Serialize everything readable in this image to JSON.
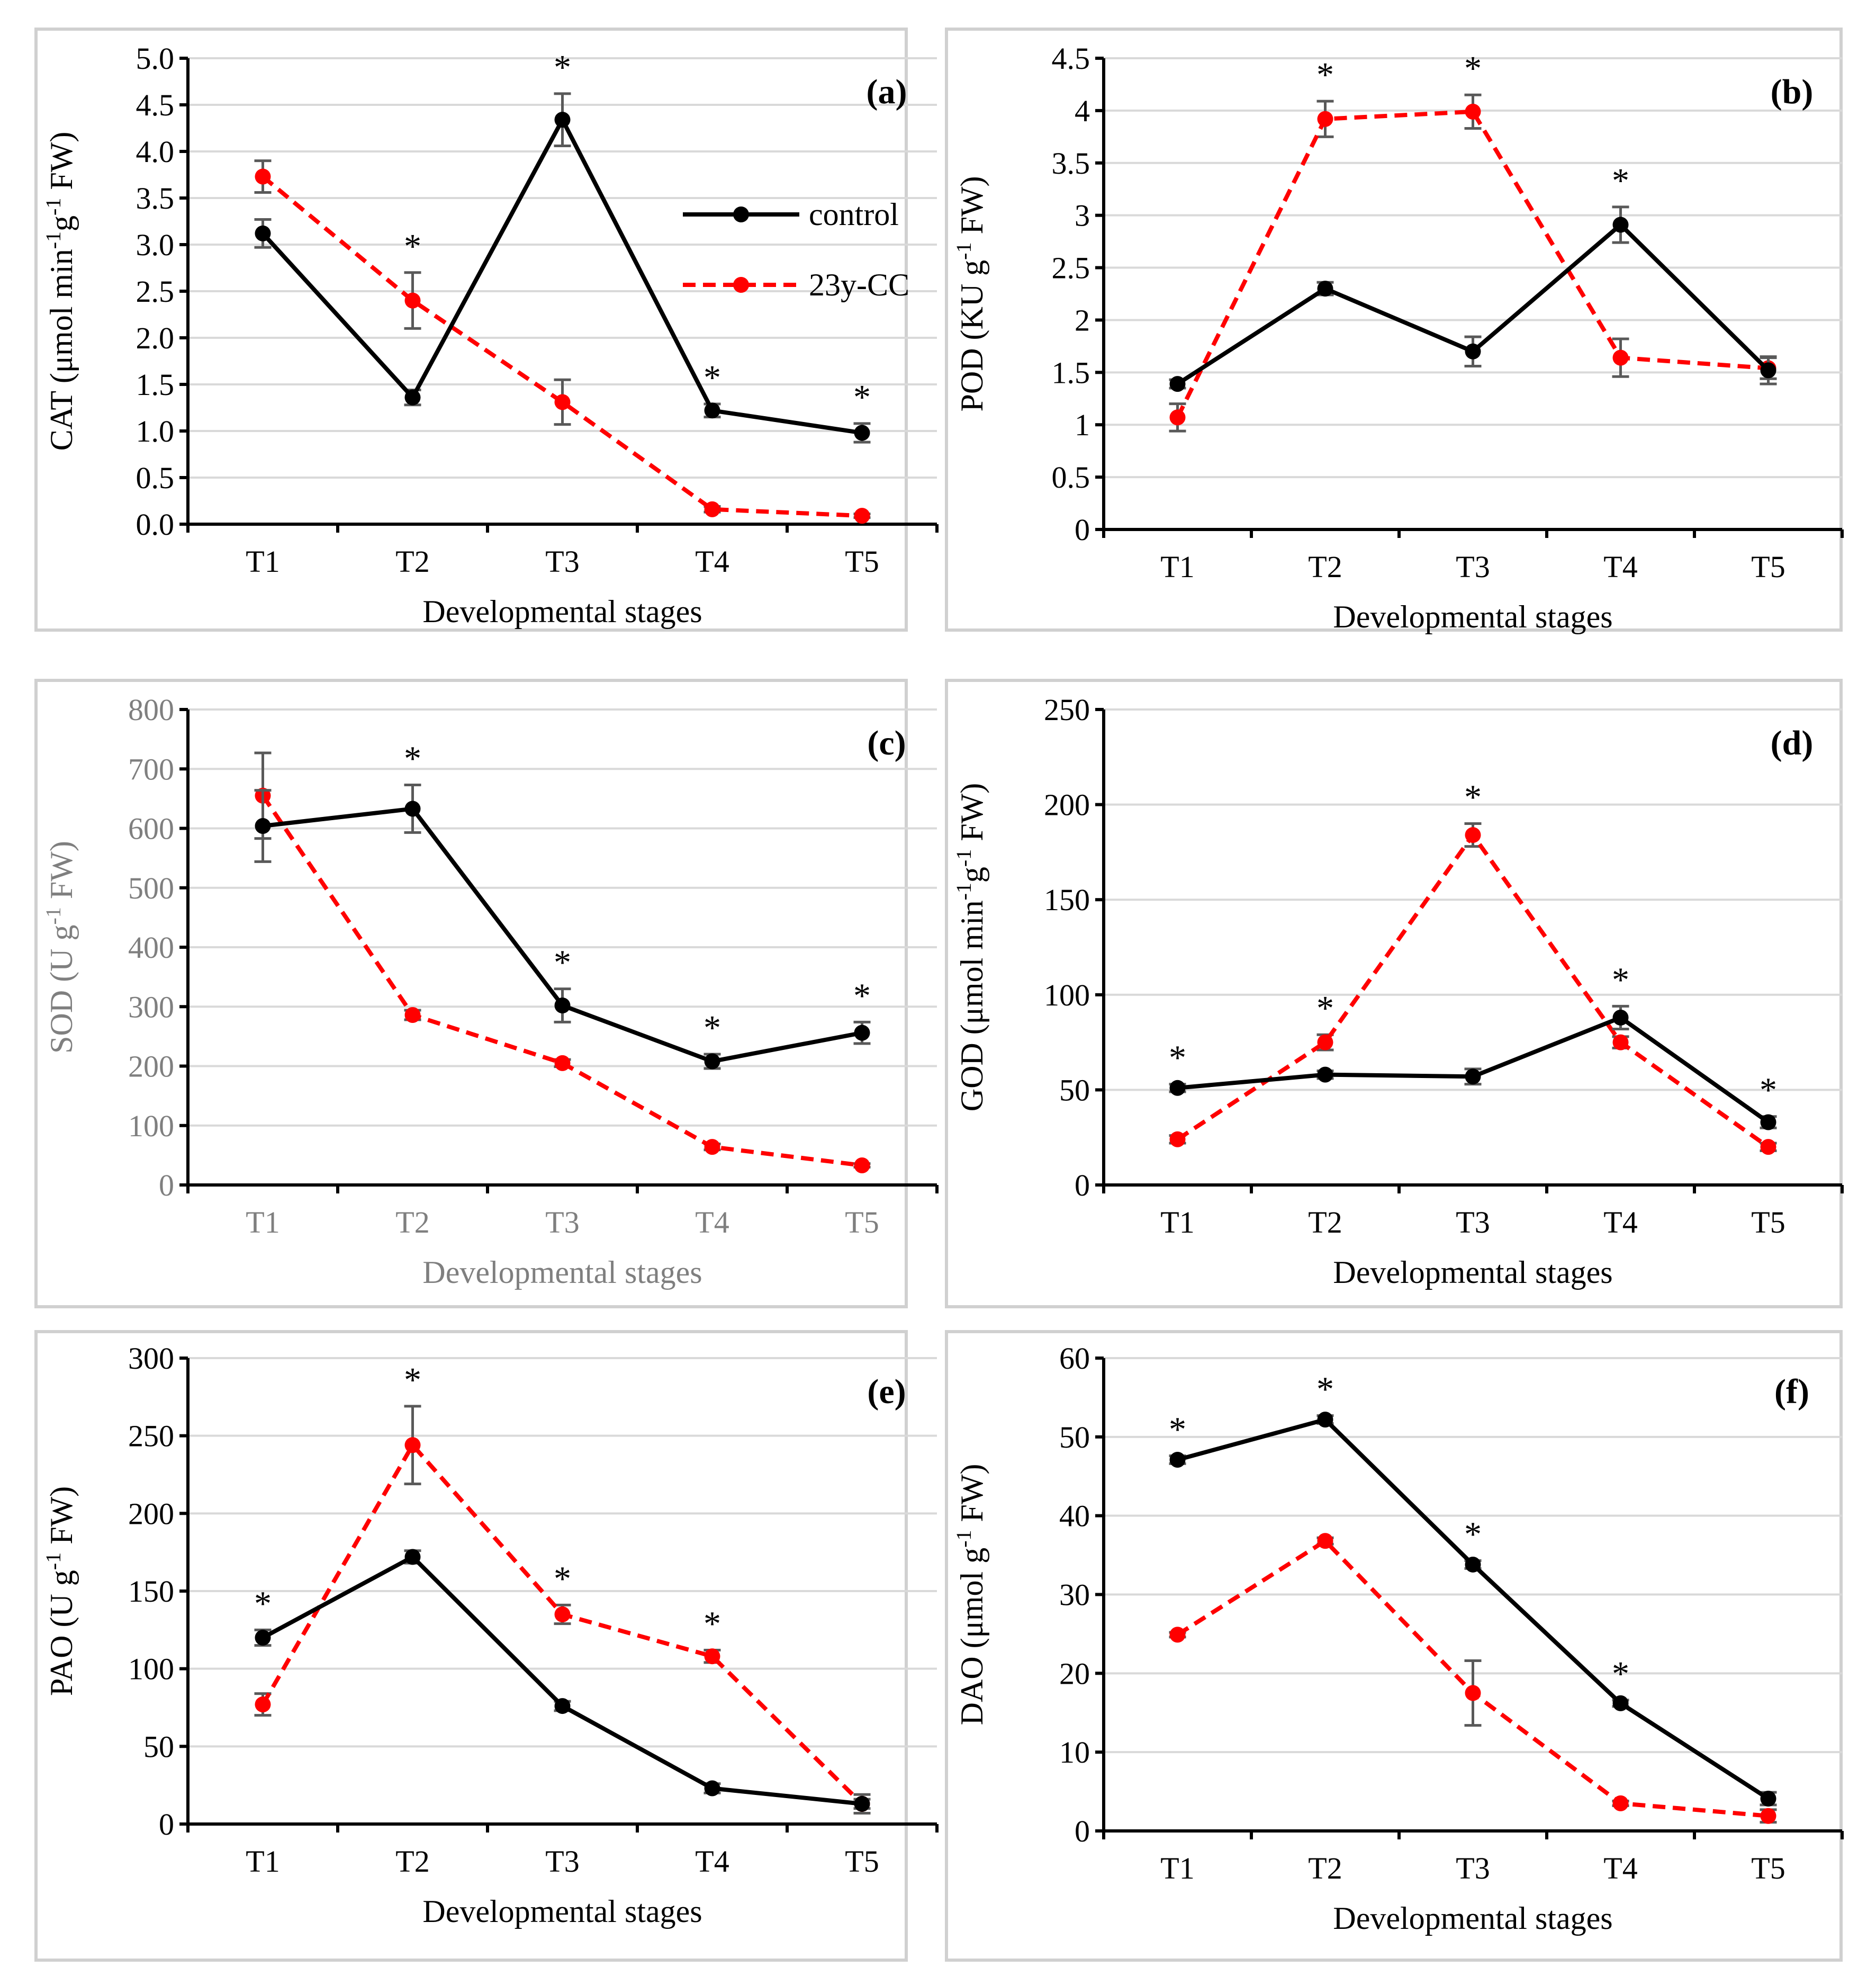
{
  "colors": {
    "control": "#000000",
    "treatment": "#ff0000",
    "errorbar": "#595959"
  },
  "legend": {
    "control_label": "control",
    "treatment_label": "23y-CC"
  },
  "chart_data": [
    {
      "id": "a",
      "type": "line",
      "panel_label": "(a)",
      "ylabel": "CAT (μmol min-1 g-1 FW)",
      "ylabel_parts": [
        {
          "t": "CAT (μmol min"
        },
        {
          "t": "-1",
          "sup": true
        },
        {
          "t": "g"
        },
        {
          "t": "-1",
          "sup": true
        },
        {
          "t": " FW)"
        }
      ],
      "xlabel": "Developmental stages",
      "categories": [
        "T1",
        "T2",
        "T3",
        "T4",
        "T5"
      ],
      "ylim": [
        0,
        5
      ],
      "ytick_step": 0.5,
      "ytick_decimals": 1,
      "series": [
        {
          "name": "control",
          "values": [
            3.12,
            1.36,
            4.34,
            1.22,
            0.98
          ],
          "errors": [
            0.15,
            0.08,
            0.28,
            0.07,
            0.1
          ]
        },
        {
          "name": "23y-CC",
          "values": [
            3.73,
            2.4,
            1.31,
            0.16,
            0.09
          ],
          "errors": [
            0.17,
            0.3,
            0.24,
            0.03,
            0.02
          ]
        }
      ],
      "significance": [
        "",
        "*",
        "*",
        "*",
        "*"
      ],
      "has_legend": true,
      "legend_position": "top-right",
      "gray_axis_labels": false
    },
    {
      "id": "b",
      "type": "line",
      "panel_label": "(b)",
      "ylabel": "POD (KU g-1 FW)",
      "ylabel_parts": [
        {
          "t": "POD (KU g"
        },
        {
          "t": "-1",
          "sup": true
        },
        {
          "t": " FW)"
        }
      ],
      "xlabel": "Developmental stages",
      "categories": [
        "T1",
        "T2",
        "T3",
        "T4",
        "T5"
      ],
      "ylim": [
        0,
        4.5
      ],
      "ytick_step": 0.5,
      "ytick_decimals": -1,
      "series": [
        {
          "name": "control",
          "values": [
            1.39,
            2.3,
            1.7,
            2.91,
            1.52
          ],
          "errors": [
            0.04,
            0.06,
            0.14,
            0.17,
            0.13
          ]
        },
        {
          "name": "23y-CC",
          "values": [
            1.07,
            3.92,
            3.99,
            1.64,
            1.54
          ],
          "errors": [
            0.13,
            0.17,
            0.16,
            0.18,
            0.1
          ]
        }
      ],
      "significance": [
        "",
        "*",
        "*",
        "*",
        ""
      ],
      "has_legend": false,
      "gray_axis_labels": false
    },
    {
      "id": "c",
      "type": "line",
      "panel_label": "(c)",
      "ylabel": "SOD (U g-1 FW)",
      "ylabel_parts": [
        {
          "t": "SOD  (U g"
        },
        {
          "t": "-1",
          "sup": true
        },
        {
          "t": "  FW)"
        }
      ],
      "xlabel": "Developmental stages",
      "categories": [
        "T1",
        "T2",
        "T3",
        "T4",
        "T5"
      ],
      "ylim": [
        0,
        800
      ],
      "ytick_step": 100,
      "ytick_decimals": 0,
      "series": [
        {
          "name": "control",
          "values": [
            604,
            633,
            302,
            208,
            256
          ],
          "errors": [
            60,
            40,
            28,
            12,
            18
          ]
        },
        {
          "name": "23y-CC",
          "values": [
            655,
            286,
            205,
            64,
            33
          ],
          "errors": [
            72,
            8,
            6,
            5,
            3
          ]
        }
      ],
      "significance": [
        "",
        "*",
        "*",
        "*",
        "*"
      ],
      "has_legend": false,
      "gray_axis_labels": true
    },
    {
      "id": "d",
      "type": "line",
      "panel_label": "(d)",
      "ylabel": "GOD (μmol min-1 g-1 FW)",
      "ylabel_parts": [
        {
          "t": "GOD (μmol min"
        },
        {
          "t": "-1",
          "sup": true
        },
        {
          "t": "g"
        },
        {
          "t": "-1",
          "sup": true
        },
        {
          "t": " FW)"
        }
      ],
      "xlabel": "Developmental stages",
      "categories": [
        "T1",
        "T2",
        "T3",
        "T4",
        "T5"
      ],
      "ylim": [
        0,
        250
      ],
      "ytick_step": 50,
      "ytick_decimals": 0,
      "series": [
        {
          "name": "control",
          "values": [
            51,
            58,
            57,
            88,
            33
          ],
          "errors": [
            2,
            2,
            4,
            6,
            3
          ]
        },
        {
          "name": "23y-CC",
          "values": [
            24,
            75,
            184,
            75,
            20
          ],
          "errors": [
            2,
            4,
            6,
            3,
            2
          ]
        }
      ],
      "significance": [
        "*",
        "*",
        "*",
        "*",
        "*"
      ],
      "has_legend": false,
      "gray_axis_labels": false
    },
    {
      "id": "e",
      "type": "line",
      "panel_label": "(e)",
      "ylabel": "PAO (U g-1 FW)",
      "ylabel_parts": [
        {
          "t": "PAO (U g"
        },
        {
          "t": "-1",
          "sup": true
        },
        {
          "t": " FW)"
        }
      ],
      "xlabel": "Developmental stages",
      "categories": [
        "T1",
        "T2",
        "T3",
        "T4",
        "T5"
      ],
      "ylim": [
        0,
        300
      ],
      "ytick_step": 50,
      "ytick_decimals": 0,
      "series": [
        {
          "name": "control",
          "values": [
            120,
            172,
            76,
            23,
            13
          ],
          "errors": [
            5,
            4,
            3,
            3,
            3
          ]
        },
        {
          "name": "23y-CC",
          "values": [
            77,
            244,
            135,
            108,
            13
          ],
          "errors": [
            7,
            25,
            6,
            4,
            6
          ]
        }
      ],
      "significance": [
        "*",
        "*",
        "*",
        "*",
        ""
      ],
      "has_legend": false,
      "gray_axis_labels": false
    },
    {
      "id": "f",
      "type": "line",
      "panel_label": "(f)",
      "ylabel": "DAO (μmol g-1 FW)",
      "ylabel_parts": [
        {
          "t": "DAO (μmol g"
        },
        {
          "t": "-1",
          "sup": true
        },
        {
          "t": " FW)"
        }
      ],
      "xlabel": "Developmental stages",
      "categories": [
        "T1",
        "T2",
        "T3",
        "T4",
        "T5"
      ],
      "ylim": [
        0,
        60
      ],
      "ytick_step": 10,
      "ytick_decimals": 0,
      "series": [
        {
          "name": "control",
          "values": [
            47.1,
            52.2,
            33.8,
            16.2,
            4.1
          ],
          "errors": [
            0.5,
            0.5,
            0.5,
            0.4,
            0.8
          ]
        },
        {
          "name": "23y-CC",
          "values": [
            24.9,
            36.8,
            17.5,
            3.5,
            1.9
          ],
          "errors": [
            0.3,
            0.4,
            4.1,
            0.3,
            0.8
          ]
        }
      ],
      "significance": [
        "*",
        "*",
        "*",
        "*",
        ""
      ],
      "has_legend": false,
      "gray_axis_labels": false
    }
  ]
}
